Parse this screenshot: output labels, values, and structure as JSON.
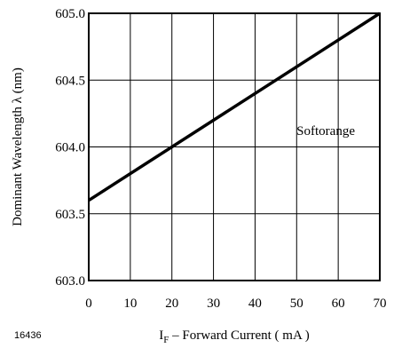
{
  "figure_id": "16436",
  "chart_data": {
    "type": "line",
    "xlabel": {
      "main": "I",
      "sub": "F",
      "rest": " – Forward Current ( mA )"
    },
    "ylabel": "Dominant Wavelength λ  (nm)",
    "xlim": [
      0,
      70
    ],
    "ylim": [
      603.0,
      605.0
    ],
    "x_ticks": [
      0,
      10,
      20,
      30,
      40,
      50,
      60,
      70
    ],
    "x_tick_labels": [
      "0",
      "10",
      "20",
      "30",
      "40",
      "50",
      "60",
      "70"
    ],
    "y_ticks": [
      603.0,
      603.5,
      604.0,
      604.5,
      605.0
    ],
    "y_tick_labels": [
      "603.0",
      "603.5",
      "604.0",
      "604.5",
      "605.0"
    ],
    "grid": true,
    "series": [
      {
        "x": [
          0,
          70
        ],
        "y": [
          603.6,
          605.0
        ],
        "color": "#000000"
      }
    ],
    "annotations": [
      {
        "text": "Softorange",
        "x": 57,
        "y": 604.09
      }
    ]
  }
}
